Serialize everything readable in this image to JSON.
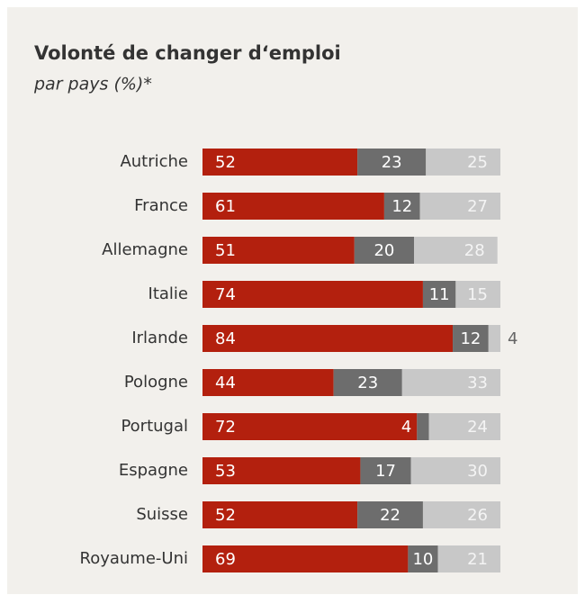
{
  "chart_data": {
    "type": "stacked-bar-horizontal",
    "title": "Volonté de changer d‘emploi",
    "subtitle": "par pays (%)*",
    "categories": [
      "Autriche",
      "France",
      "Allemagne",
      "Italie",
      "Irlande",
      "Pologne",
      "Portugal",
      "Espagne",
      "Suisse",
      "Royaume-Uni"
    ],
    "series": [
      {
        "color": "#b3200e",
        "values": [
          52,
          61,
          51,
          74,
          84,
          44,
          72,
          53,
          52,
          69
        ]
      },
      {
        "color": "#6d6d6d",
        "values": [
          23,
          12,
          20,
          11,
          12,
          23,
          4,
          17,
          22,
          10
        ]
      },
      {
        "color": "#c8c8c8",
        "values": [
          25,
          27,
          28,
          15,
          4,
          33,
          24,
          30,
          26,
          21
        ]
      }
    ],
    "xlim": [
      0,
      100
    ]
  }
}
